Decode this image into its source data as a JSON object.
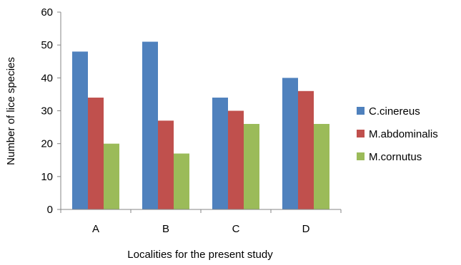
{
  "chart_data": {
    "type": "bar",
    "title": "",
    "xlabel": "Localities for the present study",
    "ylabel": "Number of lice species",
    "categories": [
      "A",
      "B",
      "C",
      "D"
    ],
    "ylim": [
      0,
      60
    ],
    "yticks": [
      0,
      10,
      20,
      30,
      40,
      50,
      60
    ],
    "grid": false,
    "legend_position": "right",
    "series": [
      {
        "name": "C.cinereus",
        "color": "#4F81BD",
        "values": [
          48,
          51,
          34,
          40
        ]
      },
      {
        "name": "M.abdominalis",
        "color": "#C0504D",
        "values": [
          34,
          27,
          30,
          36
        ]
      },
      {
        "name": "M.cornutus",
        "color": "#9BBB59",
        "values": [
          20,
          17,
          26,
          26
        ]
      }
    ]
  }
}
